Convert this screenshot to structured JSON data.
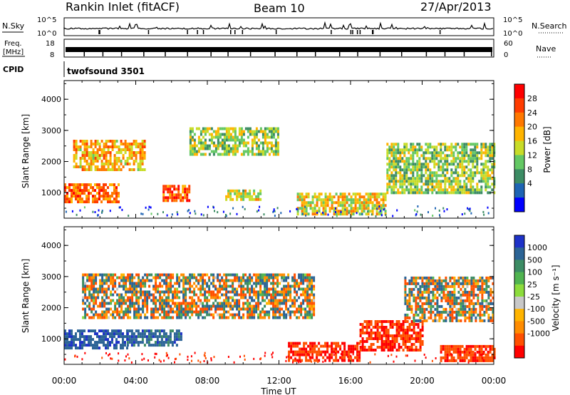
{
  "header": {
    "station": "Rankin Inlet (fitACF)",
    "beam": "Beam 10",
    "date": "27/Apr/2013"
  },
  "strips": {
    "nsky": {
      "label": "N.Sky",
      "ticks_left": [
        "10^5",
        "10^0"
      ]
    },
    "nsearch": {
      "label": "N.Search",
      "ticks_right": [
        "10^5",
        "10^0"
      ]
    },
    "freq": {
      "label_top": "Freq.",
      "label_unit": "[MHz]",
      "ticks_left": [
        "18",
        "8"
      ]
    },
    "nave": {
      "label": "Nave",
      "ticks_right": [
        "60",
        "0"
      ]
    },
    "cpid": {
      "label": "CPID",
      "value": "twofsound 3501"
    }
  },
  "power_panel": {
    "ylabel": "Slant Range [km]",
    "colorbar_label": "Power [dB]",
    "colorbar_ticks": [
      "28",
      "24",
      "20",
      "16",
      "12",
      "8",
      "4"
    ],
    "colorbar_colors": [
      "#ff0000",
      "#ff3c00",
      "#ff7800",
      "#ffb400",
      "#c8dc28",
      "#64c864",
      "#3c8c64",
      "#1e64b4",
      "#0000ff"
    ]
  },
  "velocity_panel": {
    "ylabel": "Slant Range [km]",
    "colorbar_label": "Velocity [m s⁻¹]",
    "colorbar_ticks": [
      "1000",
      "500",
      "100",
      "25",
      "-25",
      "-100",
      "-500",
      "-1000"
    ],
    "colorbar_colors": [
      "#1e32c8",
      "#2c6496",
      "#3c8c64",
      "#50b450",
      "#8cdc3c",
      "#c8c8c8",
      "#ffb400",
      "#ff8c00",
      "#ff5000",
      "#ff0000"
    ]
  },
  "xaxis": {
    "label": "Time UT",
    "ticks": [
      "00:00",
      "04:00",
      "08:00",
      "12:00",
      "16:00",
      "20:00",
      "00:00"
    ]
  },
  "chart_data": [
    {
      "type": "heatmap",
      "title": "",
      "xlabel": "Time UT",
      "ylabel": "Slant Range [km]",
      "xlim": [
        0,
        24
      ],
      "ylim": [
        180,
        4600
      ],
      "yticks": [
        1000,
        2000,
        3000,
        4000
      ],
      "value_label": "Power [dB]",
      "value_range": [
        0,
        32
      ],
      "regions": [
        {
          "t0": 0.0,
          "t1": 3.0,
          "r0": 700,
          "r1": 1300,
          "level": 24
        },
        {
          "t0": 0.5,
          "t1": 4.5,
          "r0": 1700,
          "r1": 2700,
          "level": 20
        },
        {
          "t0": 5.5,
          "t1": 7.0,
          "r0": 750,
          "r1": 1250,
          "level": 26
        },
        {
          "t0": 7.0,
          "t1": 12.0,
          "r0": 2200,
          "r1": 3100,
          "level": 14
        },
        {
          "t0": 9.0,
          "t1": 11.0,
          "r0": 800,
          "r1": 1100,
          "level": 16
        },
        {
          "t0": 13.0,
          "t1": 18.0,
          "r0": 300,
          "r1": 1000,
          "level": 18
        },
        {
          "t0": 18.0,
          "t1": 24.0,
          "r0": 1000,
          "r1": 2600,
          "level": 14
        }
      ]
    },
    {
      "type": "heatmap",
      "title": "",
      "xlabel": "Time UT",
      "ylabel": "Slant Range [km]",
      "xlim": [
        0,
        24
      ],
      "ylim": [
        180,
        4600
      ],
      "yticks": [
        1000,
        2000,
        3000,
        4000
      ],
      "value_label": "Velocity [m s⁻¹]",
      "value_range": [
        -1000,
        1000
      ],
      "regions": [
        {
          "t0": 0.0,
          "t1": 3.5,
          "r0": 700,
          "r1": 1300,
          "level": 200
        },
        {
          "t0": 3.5,
          "t1": 6.5,
          "r0": 800,
          "r1": 1300,
          "level": 150
        },
        {
          "t0": 1.0,
          "t1": 14.0,
          "r0": 1700,
          "r1": 3100,
          "level": 0
        },
        {
          "t0": 12.5,
          "t1": 16.5,
          "r0": 300,
          "r1": 900,
          "level": -250
        },
        {
          "t0": 16.5,
          "t1": 20.0,
          "r0": 600,
          "r1": 1600,
          "level": -250
        },
        {
          "t0": 19.0,
          "t1": 24.0,
          "r0": 1600,
          "r1": 3000,
          "level": 0
        },
        {
          "t0": 21.0,
          "t1": 24.0,
          "r0": 300,
          "r1": 800,
          "level": -200
        }
      ]
    }
  ]
}
